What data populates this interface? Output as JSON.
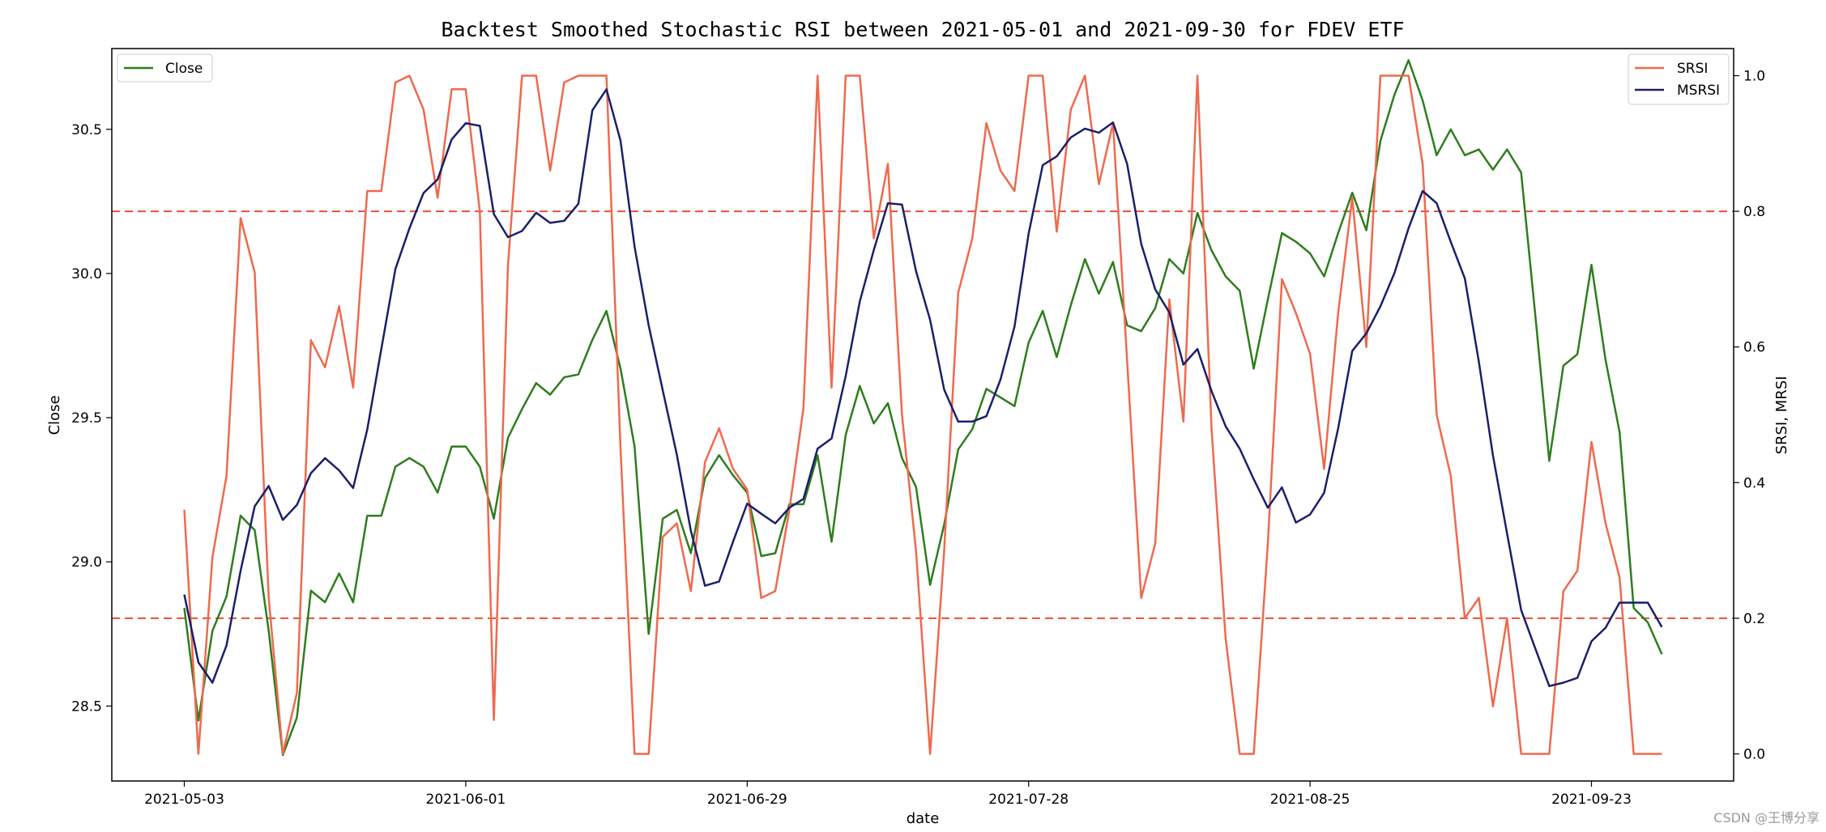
{
  "chart_data": {
    "type": "line",
    "title": "Backtest Smoothed Stochastic RSI between 2021-05-01 and 2021-09-30 for FDEV ETF",
    "xlabel": "date",
    "ylabel_left": "Close",
    "ylabel_right": "SRSI, MRSI",
    "x_tick_labels": [
      "2021-05-03",
      "2021-06-01",
      "2021-06-29",
      "2021-07-28",
      "2021-08-25",
      "2021-09-23"
    ],
    "x_tick_index": [
      0,
      20,
      40,
      60,
      80,
      100
    ],
    "ylim_left": [
      28.24,
      30.78
    ],
    "yticks_left": [
      "28.5",
      "29.0",
      "29.5",
      "30.0",
      "30.5"
    ],
    "ylim_right": [
      -0.04,
      1.04
    ],
    "yticks_right": [
      "0.0",
      "0.2",
      "0.4",
      "0.6",
      "0.8",
      "1.0"
    ],
    "hlines": [
      0.2,
      0.8
    ],
    "grid": false,
    "legend_left": {
      "placement": "upper-left",
      "entries": [
        "Close"
      ]
    },
    "legend_right": {
      "placement": "upper-right",
      "entries": [
        "SRSI",
        "MSRSI"
      ]
    },
    "colors": {
      "close": "#2e7d1e",
      "srsi": "#ee6a4e",
      "msrsi": "#1b1f6b",
      "hline": "#e8503a"
    },
    "series": [
      {
        "name": "Close",
        "axis": "left",
        "values": [
          28.84,
          28.45,
          28.76,
          28.88,
          29.16,
          29.11,
          28.76,
          28.33,
          28.46,
          28.9,
          28.86,
          28.96,
          28.86,
          29.16,
          29.16,
          29.33,
          29.36,
          29.33,
          29.24,
          29.4,
          29.4,
          29.33,
          29.15,
          29.43,
          29.53,
          29.62,
          29.58,
          29.64,
          29.65,
          29.77,
          29.87,
          29.67,
          29.4,
          28.75,
          29.15,
          29.18,
          29.03,
          29.29,
          29.37,
          29.3,
          29.24,
          29.02,
          29.03,
          29.2,
          29.2,
          29.37,
          29.07,
          29.44,
          29.61,
          29.48,
          29.55,
          29.36,
          29.26,
          28.92,
          29.13,
          29.39,
          29.46,
          29.6,
          29.57,
          29.54,
          29.76,
          29.87,
          29.71,
          29.89,
          30.05,
          29.93,
          30.04,
          29.82,
          29.8,
          29.88,
          30.05,
          30.0,
          30.21,
          30.08,
          29.99,
          29.94,
          29.67,
          29.91,
          30.14,
          30.11,
          30.07,
          29.99,
          30.14,
          30.28,
          30.15,
          30.46,
          30.62,
          30.74,
          30.6,
          30.41,
          30.5,
          30.41,
          30.43,
          30.36,
          30.43,
          30.35,
          29.86,
          29.35,
          29.68,
          29.72,
          30.03,
          29.7,
          29.45,
          28.84,
          28.79,
          28.68
        ]
      },
      {
        "name": "SRSI",
        "axis": "right",
        "values": [
          0.36,
          0.0,
          0.29,
          0.41,
          0.79,
          0.71,
          0.23,
          0.0,
          0.09,
          0.61,
          0.57,
          0.66,
          0.54,
          0.83,
          0.83,
          0.99,
          1.0,
          0.95,
          0.82,
          0.98,
          0.98,
          0.8,
          0.05,
          0.72,
          1.0,
          1.0,
          0.86,
          0.99,
          1.0,
          1.0,
          1.0,
          0.45,
          0.0,
          0.0,
          0.32,
          0.34,
          0.24,
          0.43,
          0.48,
          0.42,
          0.39,
          0.23,
          0.24,
          0.36,
          0.51,
          1.0,
          0.54,
          1.0,
          1.0,
          0.76,
          0.87,
          0.5,
          0.3,
          0.0,
          0.3,
          0.68,
          0.76,
          0.93,
          0.86,
          0.83,
          1.0,
          1.0,
          0.77,
          0.95,
          1.0,
          0.84,
          0.93,
          0.58,
          0.23,
          0.31,
          0.67,
          0.49,
          1.0,
          0.48,
          0.17,
          0.0,
          0.0,
          0.31,
          0.7,
          0.65,
          0.59,
          0.42,
          0.65,
          0.82,
          0.6,
          1.0,
          1.0,
          1.0,
          0.87,
          0.5,
          0.41,
          0.2,
          0.23,
          0.07,
          0.2,
          0.0,
          0.0,
          0.0,
          0.24,
          0.27,
          0.46,
          0.34,
          0.26,
          0.0,
          0.0,
          0.0
        ]
      },
      {
        "name": "MSRSI",
        "axis": "right",
        "values": [
          0.235,
          0.135,
          0.105,
          0.16,
          0.27,
          0.365,
          0.395,
          0.345,
          0.367,
          0.414,
          0.436,
          0.418,
          0.392,
          0.478,
          0.597,
          0.715,
          0.775,
          0.827,
          0.847,
          0.906,
          0.93,
          0.926,
          0.796,
          0.762,
          0.771,
          0.798,
          0.783,
          0.786,
          0.811,
          0.949,
          0.98,
          0.904,
          0.748,
          0.632,
          0.536,
          0.441,
          0.329,
          0.248,
          0.254,
          0.313,
          0.369,
          0.354,
          0.34,
          0.363,
          0.376,
          0.45,
          0.465,
          0.557,
          0.667,
          0.743,
          0.812,
          0.81,
          0.712,
          0.64,
          0.537,
          0.49,
          0.49,
          0.498,
          0.552,
          0.63,
          0.767,
          0.868,
          0.881,
          0.909,
          0.922,
          0.916,
          0.931,
          0.87,
          0.752,
          0.685,
          0.651,
          0.574,
          0.597,
          0.535,
          0.483,
          0.45,
          0.405,
          0.363,
          0.393,
          0.341,
          0.353,
          0.385,
          0.48,
          0.594,
          0.62,
          0.66,
          0.709,
          0.775,
          0.83,
          0.812,
          0.755,
          0.701,
          0.578,
          0.44,
          0.325,
          0.212,
          0.156,
          0.1,
          0.105,
          0.112,
          0.166,
          0.186,
          0.223,
          0.223,
          0.223,
          0.187
        ]
      }
    ]
  },
  "watermark": "CSDN @王博分享"
}
